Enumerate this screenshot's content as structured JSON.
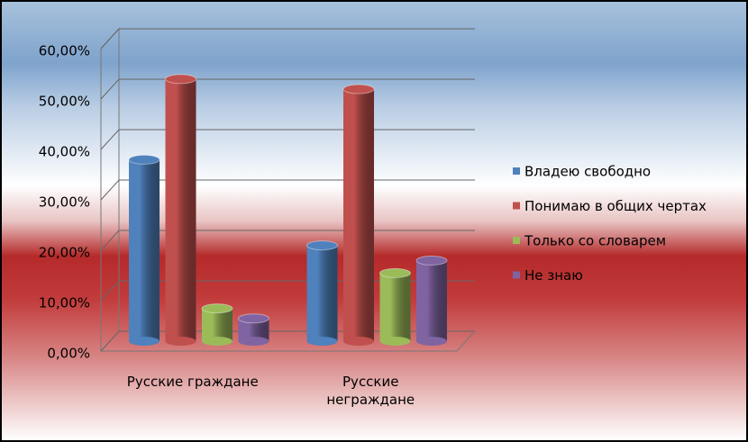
{
  "chart_data": {
    "type": "bar3d",
    "categories": [
      "Русские граждане",
      "Русские неграждане"
    ],
    "series": [
      {
        "name": "Владею свободно",
        "color": "#4f81bd",
        "values": [
          36,
          19
        ]
      },
      {
        "name": "Понимаю в общих чертах",
        "color": "#c0504d",
        "values": [
          52,
          50
        ]
      },
      {
        "name": "Только со словарем",
        "color": "#9bbb59",
        "values": [
          6.5,
          13.5
        ]
      },
      {
        "name": "Не знаю",
        "color": "#8064a2",
        "values": [
          4.5,
          16
        ]
      }
    ],
    "ylim": [
      0,
      60
    ],
    "yticks": [
      {
        "value": 0,
        "label": "0,00%"
      },
      {
        "value": 10,
        "label": "10,00%"
      },
      {
        "value": 20,
        "label": "20,00%"
      },
      {
        "value": 30,
        "label": "30,00%"
      },
      {
        "value": 40,
        "label": "40,00%"
      },
      {
        "value": 50,
        "label": "50,00%"
      },
      {
        "value": 60,
        "label": "60,00%"
      }
    ],
    "grid": true,
    "legend": "right"
  }
}
